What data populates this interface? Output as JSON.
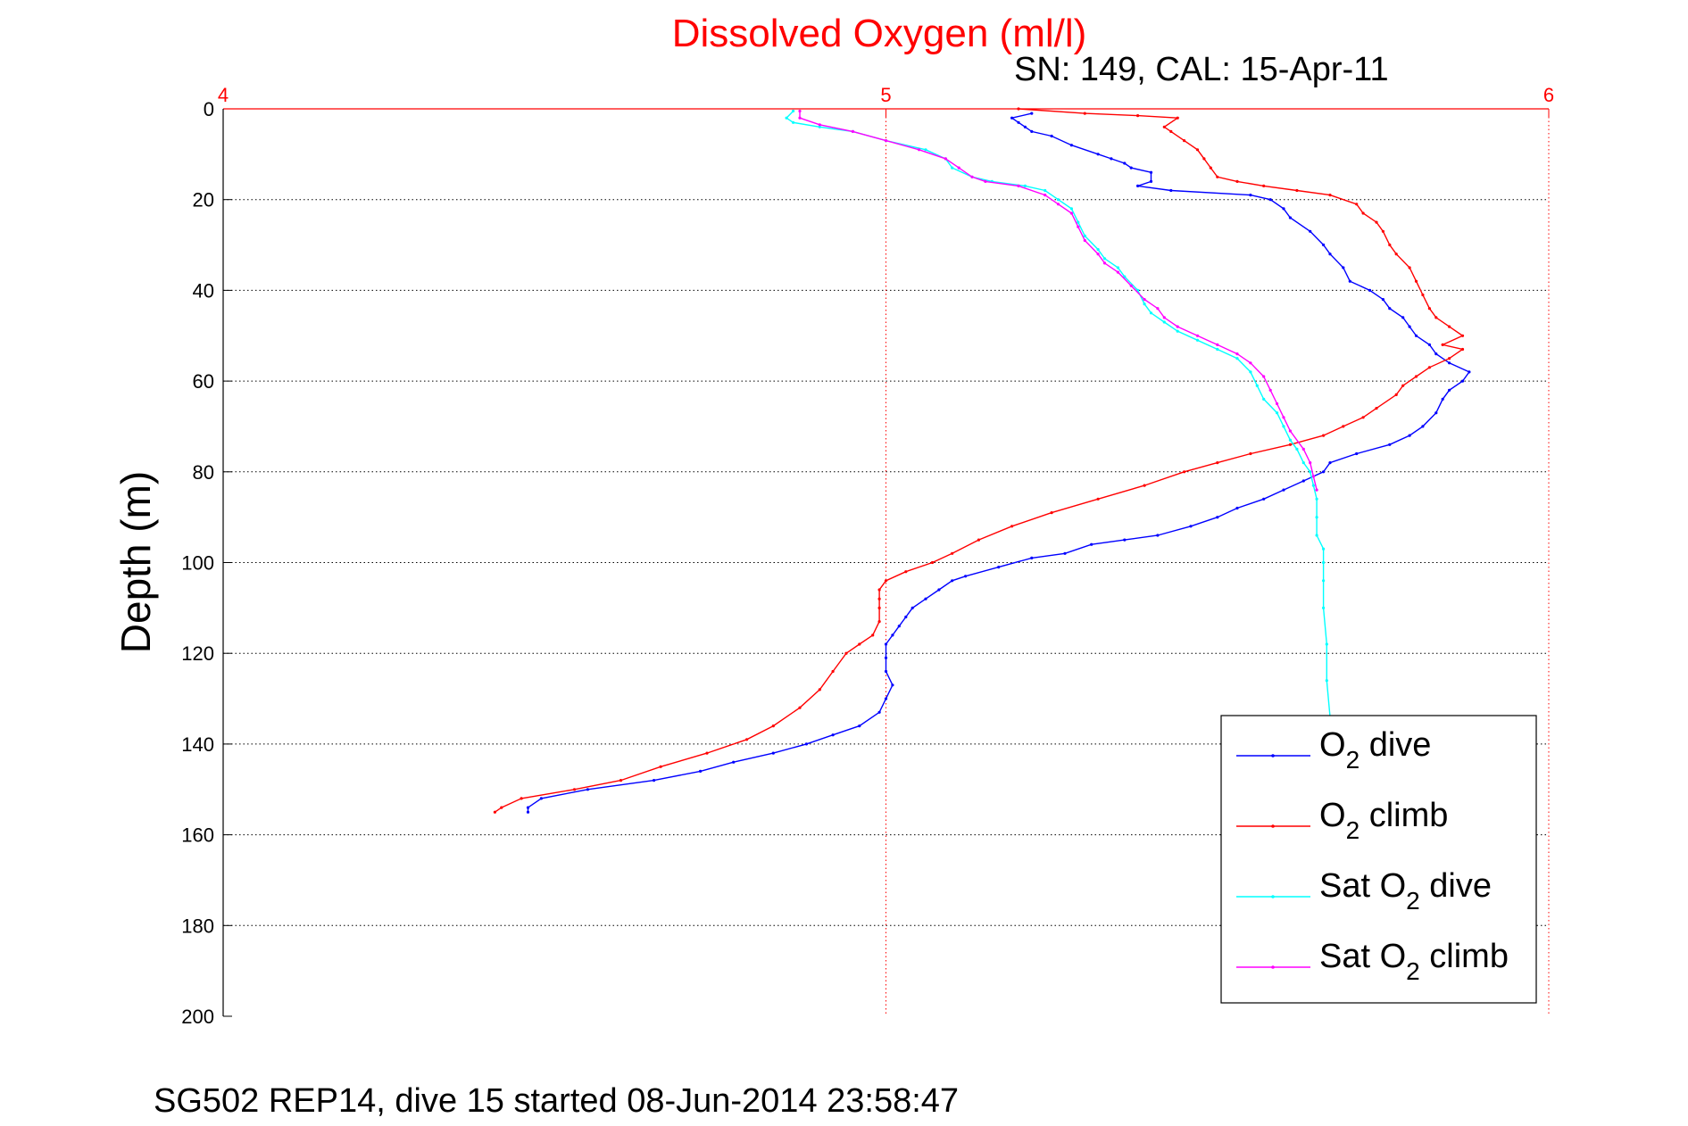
{
  "chart_data": {
    "type": "line",
    "title": "Dissolved Oxygen (ml/l)",
    "subtitle": "SN: 149, CAL: 15-Apr-11",
    "footer": "SG502 REP14, dive 15 started 08-Jun-2014 23:58:47",
    "xlabel": "",
    "ylabel": "Depth (m)",
    "xlim": [
      4,
      6
    ],
    "ylim": [
      0,
      200
    ],
    "y_reversed": true,
    "x_axis_position": "top",
    "xticks": [
      4,
      5,
      6
    ],
    "yticks": [
      0,
      20,
      40,
      60,
      80,
      100,
      120,
      140,
      160,
      180,
      200
    ],
    "grid": true,
    "legend_position": "bottom-right",
    "colors": {
      "title": "#ff0000",
      "xaxis": "#ff0000",
      "yaxis": "#000000"
    },
    "series": [
      {
        "name": "O₂ dive",
        "legend": {
          "main": "O",
          "sub": "2",
          "rest": " dive"
        },
        "color": "#0000ff",
        "points": [
          [
            5.22,
            1
          ],
          [
            5.19,
            2
          ],
          [
            5.2,
            3
          ],
          [
            5.21,
            4
          ],
          [
            5.22,
            5
          ],
          [
            5.25,
            6
          ],
          [
            5.28,
            8
          ],
          [
            5.32,
            10
          ],
          [
            5.34,
            11
          ],
          [
            5.36,
            12
          ],
          [
            5.37,
            13
          ],
          [
            5.4,
            14
          ],
          [
            5.4,
            16
          ],
          [
            5.38,
            17
          ],
          [
            5.43,
            18
          ],
          [
            5.55,
            19
          ],
          [
            5.58,
            20
          ],
          [
            5.6,
            22
          ],
          [
            5.61,
            24
          ],
          [
            5.64,
            27
          ],
          [
            5.66,
            30
          ],
          [
            5.67,
            32
          ],
          [
            5.69,
            35
          ],
          [
            5.7,
            38
          ],
          [
            5.73,
            40
          ],
          [
            5.75,
            42
          ],
          [
            5.76,
            44
          ],
          [
            5.78,
            46
          ],
          [
            5.79,
            48
          ],
          [
            5.8,
            50
          ],
          [
            5.82,
            52
          ],
          [
            5.83,
            54
          ],
          [
            5.85,
            56
          ],
          [
            5.88,
            58
          ],
          [
            5.87,
            60
          ],
          [
            5.85,
            62
          ],
          [
            5.84,
            64
          ],
          [
            5.83,
            67
          ],
          [
            5.81,
            70
          ],
          [
            5.79,
            72
          ],
          [
            5.76,
            74
          ],
          [
            5.71,
            76
          ],
          [
            5.67,
            78
          ],
          [
            5.66,
            80
          ],
          [
            5.63,
            82
          ],
          [
            5.6,
            84
          ],
          [
            5.57,
            86
          ],
          [
            5.53,
            88
          ],
          [
            5.5,
            90
          ],
          [
            5.46,
            92
          ],
          [
            5.41,
            94
          ],
          [
            5.36,
            95
          ],
          [
            5.31,
            96
          ],
          [
            5.27,
            98
          ],
          [
            5.22,
            99
          ],
          [
            5.17,
            101
          ],
          [
            5.12,
            103
          ],
          [
            5.1,
            104
          ],
          [
            5.08,
            106
          ],
          [
            5.06,
            108
          ],
          [
            5.04,
            110
          ],
          [
            5.03,
            112
          ],
          [
            5.02,
            114
          ],
          [
            5.01,
            116
          ],
          [
            5.0,
            118
          ],
          [
            5.0,
            121
          ],
          [
            5.0,
            124
          ],
          [
            5.01,
            127
          ],
          [
            5.0,
            130
          ],
          [
            4.99,
            133
          ],
          [
            4.96,
            136
          ],
          [
            4.92,
            138
          ],
          [
            4.88,
            140
          ],
          [
            4.83,
            142
          ],
          [
            4.77,
            144
          ],
          [
            4.72,
            146
          ],
          [
            4.65,
            148
          ],
          [
            4.55,
            150
          ],
          [
            4.48,
            152
          ],
          [
            4.46,
            154
          ],
          [
            4.46,
            155
          ]
        ]
      },
      {
        "name": "O₂ climb",
        "legend": {
          "main": "O",
          "sub": "2",
          "rest": " climb"
        },
        "color": "#ff0000",
        "points": [
          [
            5.2,
            0
          ],
          [
            5.3,
            1
          ],
          [
            5.38,
            1.5
          ],
          [
            5.44,
            2
          ],
          [
            5.42,
            4
          ],
          [
            5.43,
            5
          ],
          [
            5.45,
            7
          ],
          [
            5.47,
            9
          ],
          [
            5.48,
            11
          ],
          [
            5.49,
            13
          ],
          [
            5.5,
            15
          ],
          [
            5.53,
            16
          ],
          [
            5.57,
            17
          ],
          [
            5.62,
            18
          ],
          [
            5.67,
            19
          ],
          [
            5.71,
            21
          ],
          [
            5.72,
            23
          ],
          [
            5.74,
            25
          ],
          [
            5.75,
            27
          ],
          [
            5.76,
            30
          ],
          [
            5.77,
            32
          ],
          [
            5.79,
            35
          ],
          [
            5.8,
            38
          ],
          [
            5.81,
            41
          ],
          [
            5.82,
            44
          ],
          [
            5.83,
            46
          ],
          [
            5.85,
            48
          ],
          [
            5.87,
            50
          ],
          [
            5.84,
            52
          ],
          [
            5.87,
            53
          ],
          [
            5.85,
            55
          ],
          [
            5.82,
            57
          ],
          [
            5.8,
            59
          ],
          [
            5.78,
            61
          ],
          [
            5.77,
            63
          ],
          [
            5.74,
            66
          ],
          [
            5.72,
            68
          ],
          [
            5.69,
            70
          ],
          [
            5.66,
            72
          ],
          [
            5.61,
            74
          ],
          [
            5.55,
            76
          ],
          [
            5.5,
            78
          ],
          [
            5.45,
            80
          ],
          [
            5.39,
            83
          ],
          [
            5.32,
            86
          ],
          [
            5.25,
            89
          ],
          [
            5.19,
            92
          ],
          [
            5.14,
            95
          ],
          [
            5.1,
            98
          ],
          [
            5.07,
            100
          ],
          [
            5.03,
            102
          ],
          [
            5.0,
            104
          ],
          [
            4.99,
            106
          ],
          [
            4.99,
            108
          ],
          [
            4.99,
            110
          ],
          [
            4.99,
            113
          ],
          [
            4.98,
            116
          ],
          [
            4.96,
            118
          ],
          [
            4.94,
            120
          ],
          [
            4.92,
            124
          ],
          [
            4.9,
            128
          ],
          [
            4.87,
            132
          ],
          [
            4.83,
            136
          ],
          [
            4.79,
            139
          ],
          [
            4.73,
            142
          ],
          [
            4.66,
            145
          ],
          [
            4.6,
            148
          ],
          [
            4.53,
            150
          ],
          [
            4.45,
            152
          ],
          [
            4.42,
            154
          ],
          [
            4.41,
            155
          ]
        ]
      },
      {
        "name": "Sat O₂ dive",
        "legend": {
          "main": "Sat O",
          "sub": "2",
          "rest": " dive"
        },
        "color": "#00ffff",
        "points": [
          [
            4.86,
            0.5
          ],
          [
            4.85,
            2
          ],
          [
            4.86,
            3
          ],
          [
            4.9,
            4
          ],
          [
            4.95,
            5
          ],
          [
            5.0,
            7
          ],
          [
            5.06,
            9
          ],
          [
            5.09,
            11
          ],
          [
            5.1,
            13
          ],
          [
            5.13,
            15
          ],
          [
            5.16,
            16
          ],
          [
            5.21,
            17
          ],
          [
            5.24,
            18
          ],
          [
            5.26,
            20
          ],
          [
            5.28,
            22
          ],
          [
            5.29,
            25
          ],
          [
            5.3,
            28
          ],
          [
            5.32,
            31
          ],
          [
            5.33,
            33
          ],
          [
            5.35,
            35
          ],
          [
            5.36,
            37
          ],
          [
            5.38,
            40
          ],
          [
            5.39,
            43
          ],
          [
            5.4,
            45
          ],
          [
            5.42,
            47
          ],
          [
            5.44,
            49
          ],
          [
            5.47,
            51
          ],
          [
            5.5,
            53
          ],
          [
            5.53,
            55
          ],
          [
            5.55,
            58
          ],
          [
            5.56,
            61
          ],
          [
            5.57,
            64
          ],
          [
            5.59,
            67
          ],
          [
            5.6,
            70
          ],
          [
            5.61,
            73
          ],
          [
            5.62,
            75
          ],
          [
            5.63,
            78
          ],
          [
            5.64,
            80
          ],
          [
            5.645,
            83
          ],
          [
            5.65,
            86
          ],
          [
            5.65,
            90
          ],
          [
            5.65,
            94
          ],
          [
            5.66,
            97
          ],
          [
            5.66,
            100
          ],
          [
            5.66,
            104
          ],
          [
            5.66,
            110
          ],
          [
            5.665,
            118
          ],
          [
            5.665,
            126
          ],
          [
            5.67,
            134
          ]
        ]
      },
      {
        "name": "Sat O₂ climb",
        "legend": {
          "main": "Sat O",
          "sub": "2",
          "rest": " climb"
        },
        "color": "#ff00ff",
        "points": [
          [
            4.87,
            0.5
          ],
          [
            4.87,
            2
          ],
          [
            4.9,
            3.5
          ],
          [
            4.95,
            5
          ],
          [
            5.0,
            7
          ],
          [
            5.05,
            9
          ],
          [
            5.09,
            11
          ],
          [
            5.11,
            13
          ],
          [
            5.13,
            15
          ],
          [
            5.15,
            16
          ],
          [
            5.2,
            17
          ],
          [
            5.24,
            19
          ],
          [
            5.26,
            21
          ],
          [
            5.28,
            23
          ],
          [
            5.29,
            26
          ],
          [
            5.3,
            29
          ],
          [
            5.32,
            32
          ],
          [
            5.33,
            34
          ],
          [
            5.35,
            36
          ],
          [
            5.37,
            39
          ],
          [
            5.39,
            42
          ],
          [
            5.41,
            44
          ],
          [
            5.42,
            46
          ],
          [
            5.44,
            48
          ],
          [
            5.47,
            50
          ],
          [
            5.5,
            52
          ],
          [
            5.53,
            54
          ],
          [
            5.55,
            56
          ],
          [
            5.57,
            59
          ],
          [
            5.58,
            62
          ],
          [
            5.59,
            65
          ],
          [
            5.6,
            68
          ],
          [
            5.61,
            71
          ],
          [
            5.63,
            75
          ],
          [
            5.64,
            78
          ],
          [
            5.645,
            81
          ],
          [
            5.65,
            84
          ]
        ]
      }
    ]
  }
}
